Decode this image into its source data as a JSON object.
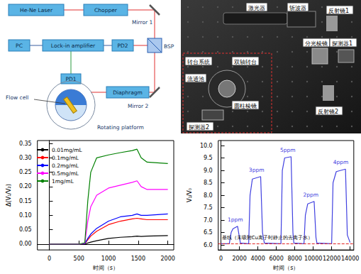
{
  "diagram": {
    "labels": {
      "laser": "He-Ne Laser",
      "chopper": "Chopper",
      "mirror1": "Mirror 1",
      "pc": "PC",
      "lockin": "Lock-in amplifier",
      "pd2": "PD2",
      "bsp": "BSP",
      "pd1": "PD1",
      "flow_cell": "Flow cell",
      "rotating_platform": "Rotating platform",
      "diaphragm": "Diaphragm",
      "mirror2": "Mirror 2"
    }
  },
  "photo": {
    "labels": {
      "laser": "激光器",
      "chopper": "斩波器",
      "mirror1": "反射镜1",
      "beam_splitter": "分光棱镜",
      "detector1": "探测器1",
      "rotary_system": "转台系统",
      "dual_axis_stage": "双轴转台",
      "flow_cell": "流通池",
      "cylinder_prism": "圆柱棱镜",
      "detector2": "探测器2",
      "mirror2": "反射镜2"
    }
  },
  "chart_data": [
    {
      "type": "line",
      "x_label": "时间（s）",
      "y_label": "Δ(V₁/V₂)",
      "x": [
        0,
        500,
        600,
        650,
        700,
        800,
        1000,
        1200,
        1400,
        1480,
        1550,
        1650,
        2000
      ],
      "series": [
        {
          "name": "0.01mg/mL",
          "color": "#000000",
          "values": [
            0,
            0,
            0,
            0.004,
            0.007,
            0.012,
            0.02,
            0.024,
            0.026,
            0.028,
            0.027,
            0.028,
            0.03
          ]
        },
        {
          "name": "0.1mg/mL",
          "color": "#ff0000",
          "values": [
            0,
            0,
            0.002,
            0.015,
            0.028,
            0.045,
            0.068,
            0.08,
            0.088,
            0.09,
            0.088,
            0.085,
            0.085
          ]
        },
        {
          "name": "0.2mg/mL",
          "color": "#0000ff",
          "values": [
            0,
            0,
            0.002,
            0.02,
            0.035,
            0.055,
            0.08,
            0.095,
            0.1,
            0.105,
            0.1,
            0.1,
            0.105
          ]
        },
        {
          "name": "0.5mg/mL",
          "color": "#ff00ff",
          "values": [
            0,
            0,
            0.003,
            0.08,
            0.13,
            0.17,
            0.195,
            0.205,
            0.215,
            0.22,
            0.2,
            0.19,
            0.19
          ]
        },
        {
          "name": "1mg/mL",
          "color": "#008000",
          "values": [
            0,
            0,
            0.005,
            0.15,
            0.25,
            0.3,
            0.31,
            0.318,
            0.325,
            0.33,
            0.3,
            0.285,
            0.28
          ]
        }
      ],
      "xlim": [
        -200,
        2100
      ],
      "xticks": [
        0,
        500,
        1000,
        1500,
        2000
      ],
      "ylim": [
        -0.02,
        0.36
      ],
      "yticks": [
        {
          "value": 0,
          "label": "0.00"
        },
        {
          "value": 0.05,
          "label": "0.05"
        },
        {
          "value": 0.1,
          "label": "0.10"
        },
        {
          "value": 0.15,
          "label": "0.15"
        },
        {
          "value": 0.2,
          "label": "0.20"
        },
        {
          "value": 0.25,
          "label": "0.25"
        },
        {
          "value": 0.3,
          "label": "0.30"
        },
        {
          "value": 0.35,
          "label": "0.35"
        }
      ],
      "grid": false,
      "legend": "upper left",
      "marker": "none"
    },
    {
      "type": "line",
      "x_label": "时间（s）",
      "y_label": "V₁/V₀",
      "x": [
        0,
        900,
        1100,
        1300,
        1800,
        2000,
        2100,
        3000,
        3150,
        3400,
        4300,
        4500,
        4700,
        6500,
        6650,
        6900,
        7600,
        7800,
        7900,
        9000,
        9150,
        9400,
        10100,
        10300,
        10400,
        12000,
        12150,
        12500,
        13500,
        13700,
        14000
      ],
      "series": [
        {
          "name": "V₁/V₀",
          "color": "#4040e0",
          "values": [
            6.05,
            6.05,
            6.5,
            6.65,
            6.75,
            6.3,
            6.08,
            6.05,
            8.0,
            8.65,
            8.75,
            6.5,
            6.08,
            6.05,
            9.0,
            9.5,
            9.55,
            6.5,
            6.08,
            6.05,
            7.2,
            7.65,
            7.75,
            6.3,
            6.08,
            6.05,
            8.5,
            8.95,
            9.05,
            6.4,
            6.1
          ]
        }
      ],
      "annotations": [
        {
          "text": "1ppm",
          "x": 1550,
          "y": 6.75
        },
        {
          "text": "3ppm",
          "x": 3850,
          "y": 8.75
        },
        {
          "text": "5ppm",
          "x": 7250,
          "y": 9.55
        },
        {
          "text": "2ppm",
          "x": 9750,
          "y": 7.75
        },
        {
          "text": "4ppm",
          "x": 13000,
          "y": 9.05
        }
      ],
      "baseline": {
        "text": "基线（未吸附Cu离子时静止的去离子水）",
        "value": 6.05,
        "color": "#e02020",
        "line_style": "dashed"
      },
      "xlim": [
        -300,
        14400
      ],
      "xticks": [
        0,
        2000,
        4000,
        6000,
        8000,
        10000,
        12000,
        14000
      ],
      "ylim": [
        5.8,
        10.2
      ],
      "yticks": [
        {
          "value": 6,
          "label": "6.0"
        },
        {
          "value": 6.5,
          "label": "6.5"
        },
        {
          "value": 7,
          "label": "7.0"
        },
        {
          "value": 7.5,
          "label": "7.5"
        },
        {
          "value": 8,
          "label": "8.0"
        },
        {
          "value": 8.5,
          "label": "8.5"
        },
        {
          "value": 9,
          "label": "9.0"
        },
        {
          "value": 9.5,
          "label": "9.5"
        },
        {
          "value": 10,
          "label": "10.0"
        }
      ],
      "grid": false,
      "marker": "none"
    }
  ]
}
